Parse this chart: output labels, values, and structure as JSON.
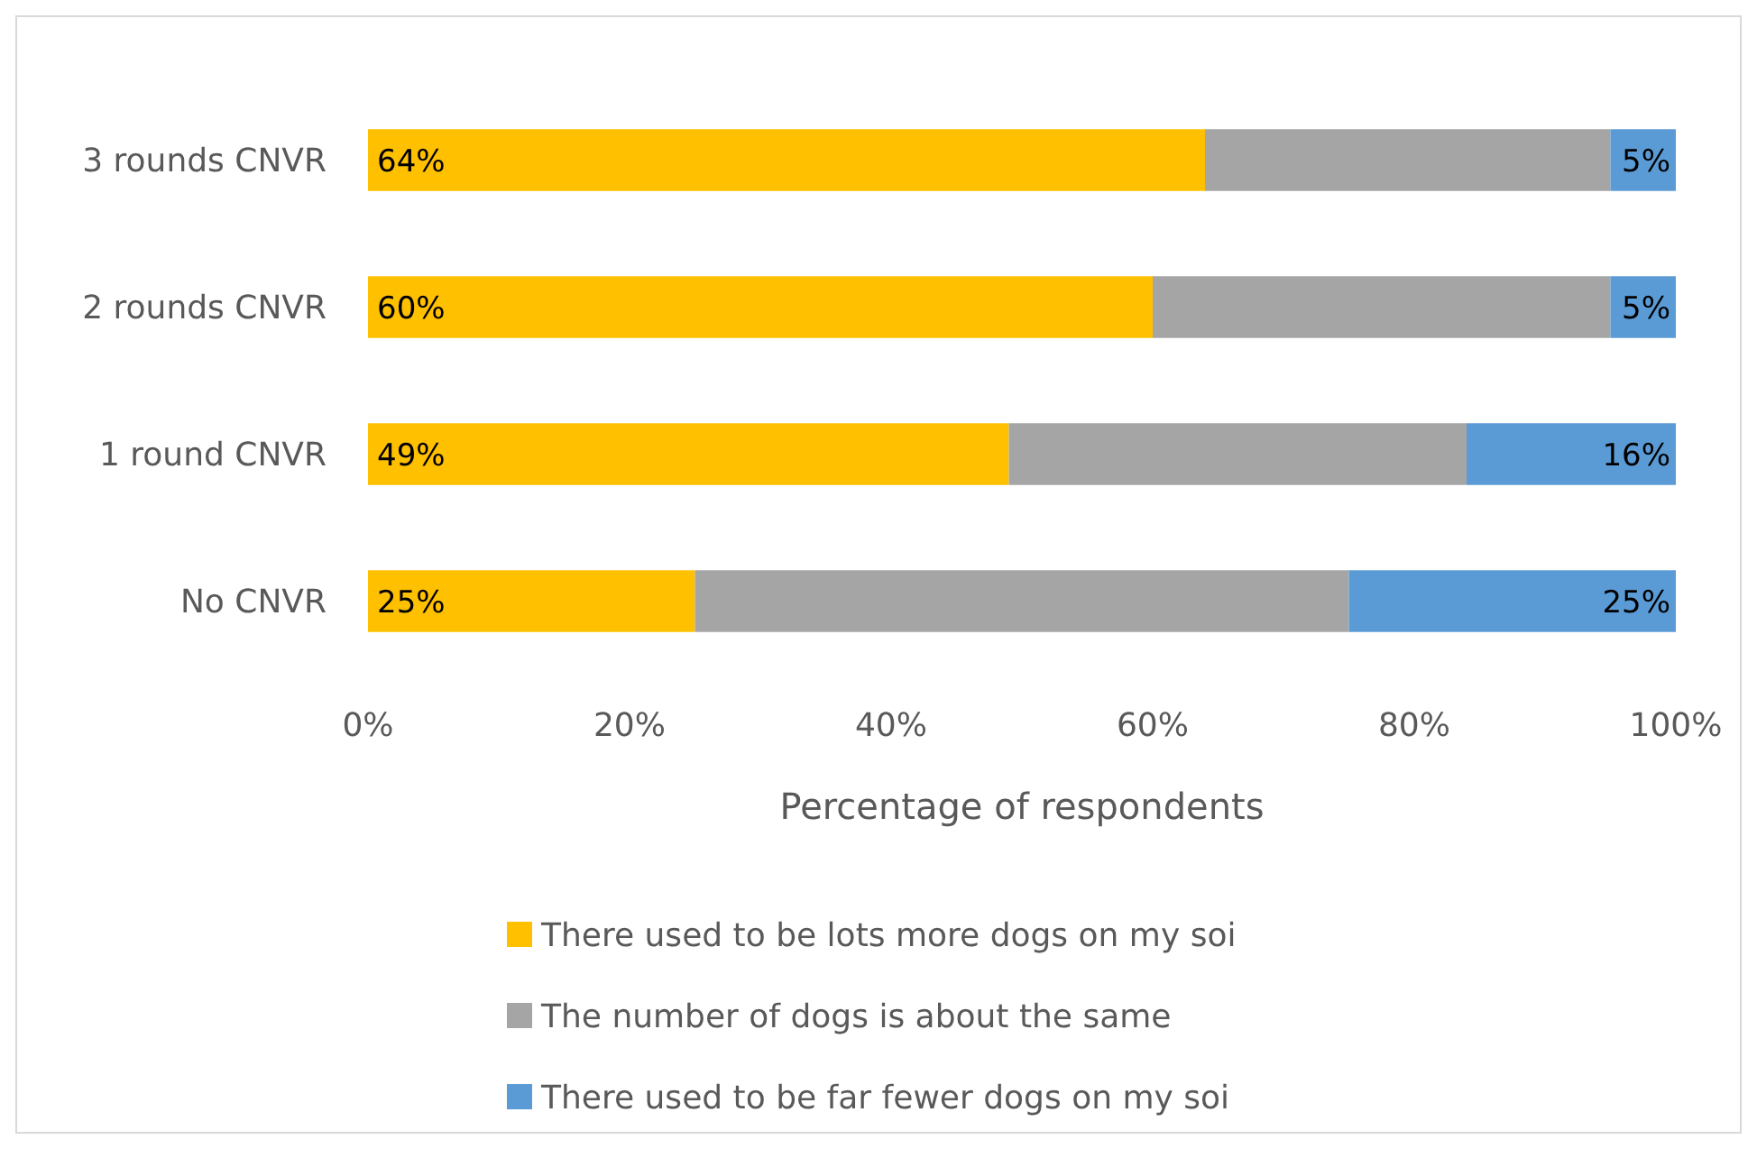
{
  "chart_data": {
    "type": "bar",
    "orientation": "horizontal",
    "stacked": true,
    "categories": [
      "3 rounds CNVR",
      "2 rounds CNVR",
      "1 round CNVR",
      "No CNVR"
    ],
    "series": [
      {
        "name": "There used to be lots more dogs on my soi",
        "color": "#ffc000",
        "values": [
          64,
          60,
          49,
          25
        ],
        "value_labels": [
          "64%",
          "60%",
          "49%",
          "25%"
        ]
      },
      {
        "name": "The number of dogs is about the same",
        "color": "#a5a5a5",
        "values": [
          31,
          35,
          35,
          50
        ]
      },
      {
        "name": "There used to be far fewer dogs on my soi",
        "color": "#5b9bd5",
        "values": [
          5,
          5,
          16,
          25
        ],
        "value_labels": [
          "5%",
          "5%",
          "16%",
          "25%"
        ]
      }
    ],
    "xlabel": "Percentage of respondents",
    "xlim": [
      0,
      100
    ],
    "xticks": [
      {
        "value": 0,
        "label": "0%"
      },
      {
        "value": 20,
        "label": "20%"
      },
      {
        "value": 40,
        "label": "40%"
      },
      {
        "value": 60,
        "label": "60%"
      },
      {
        "value": 80,
        "label": "80%"
      },
      {
        "value": 100,
        "label": "100%"
      }
    ],
    "grid": false,
    "legend": "bottom"
  }
}
